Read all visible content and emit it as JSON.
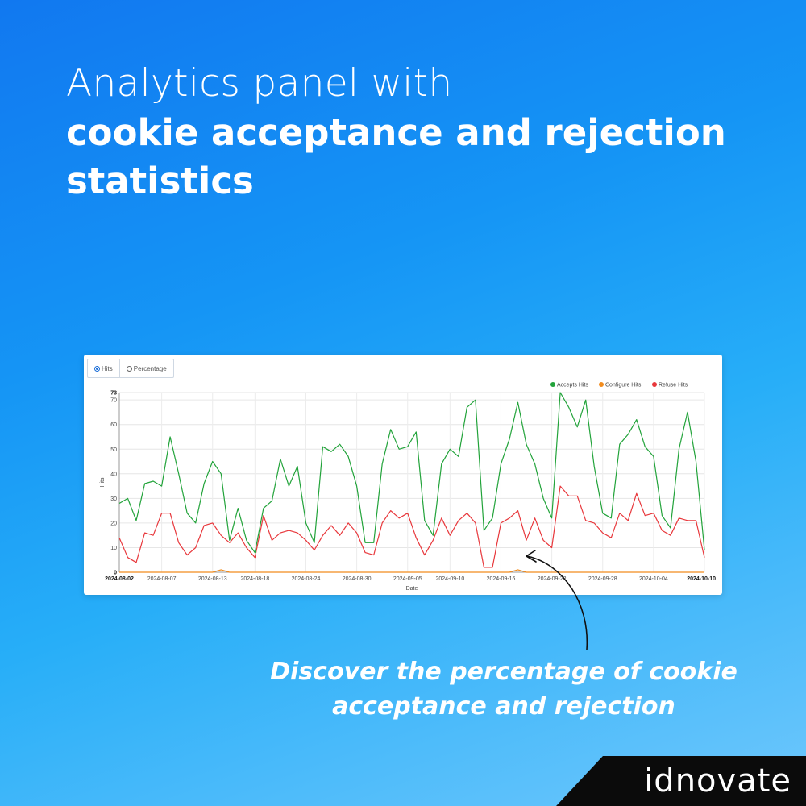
{
  "headline": {
    "line1": "Analytics panel with",
    "line2": "cookie acceptance and rejection statistics"
  },
  "mode_toggle": {
    "options": [
      {
        "label": "Hits",
        "selected": true
      },
      {
        "label": "Percentage",
        "selected": false
      }
    ]
  },
  "caption": "Discover the percentage of cookie acceptance and rejection",
  "logo": "idnovate",
  "chart_data": {
    "type": "line",
    "xlabel": "Date",
    "ylabel": "Hits",
    "ylim": [
      0,
      73
    ],
    "yticks": [
      0,
      10,
      20,
      30,
      40,
      50,
      60,
      70,
      73
    ],
    "grid": true,
    "legend": "top-right",
    "x_start": "2024-08-02",
    "x_end": "2024-10-10",
    "x_tick_labels": [
      "2024-08-02",
      "2024-08-07",
      "2024-08-13",
      "2024-08-18",
      "2024-08-24",
      "2024-08-30",
      "2024-09-05",
      "2024-09-10",
      "2024-09-16",
      "2024-09-22",
      "2024-09-28",
      "2024-10-04",
      "2024-10-10"
    ],
    "x_tick_days": [
      0,
      5,
      11,
      16,
      22,
      28,
      34,
      39,
      45,
      51,
      57,
      63,
      69
    ],
    "series": [
      {
        "name": "Accepts Hits",
        "color": "#22a33a",
        "values": [
          28,
          30,
          21,
          36,
          37,
          35,
          55,
          40,
          24,
          20,
          36,
          45,
          40,
          13,
          26,
          13,
          8,
          26,
          29,
          46,
          35,
          43,
          20,
          12,
          51,
          49,
          52,
          47,
          35,
          12,
          12,
          44,
          58,
          50,
          51,
          57,
          21,
          15,
          44,
          50,
          47,
          67,
          70,
          17,
          22,
          44,
          54,
          69,
          52,
          44,
          30,
          22,
          73,
          67,
          59,
          70,
          43,
          24,
          22,
          52,
          56,
          62,
          51,
          47,
          23,
          18,
          50,
          65,
          45,
          9
        ]
      },
      {
        "name": "Configure Hits",
        "color": "#f28c1e",
        "values": [
          0,
          0,
          0,
          0,
          0,
          0,
          0,
          0,
          0,
          0,
          0,
          0,
          1,
          0,
          0,
          0,
          0,
          0,
          0,
          0,
          0,
          0,
          0,
          0,
          0,
          0,
          0,
          0,
          0,
          0,
          0,
          0,
          0,
          0,
          0,
          0,
          0,
          0,
          0,
          0,
          0,
          0,
          0,
          0,
          0,
          0,
          0,
          1,
          0,
          0,
          0,
          0,
          0,
          0,
          0,
          0,
          0,
          0,
          0,
          0,
          0,
          0,
          0,
          0,
          0,
          0,
          0,
          0,
          0,
          0
        ]
      },
      {
        "name": "Refuse Hits",
        "color": "#e8383c",
        "values": [
          14,
          6,
          4,
          16,
          15,
          24,
          24,
          12,
          7,
          10,
          19,
          20,
          15,
          12,
          16,
          10,
          6,
          23,
          13,
          16,
          17,
          16,
          13,
          9,
          15,
          19,
          15,
          20,
          16,
          8,
          7,
          20,
          25,
          22,
          24,
          14,
          7,
          13,
          22,
          15,
          21,
          24,
          20,
          2,
          2,
          20,
          22,
          25,
          13,
          22,
          13,
          10,
          35,
          31,
          31,
          21,
          20,
          16,
          14,
          24,
          21,
          32,
          23,
          24,
          17,
          15,
          22,
          21,
          21,
          6
        ]
      }
    ]
  }
}
